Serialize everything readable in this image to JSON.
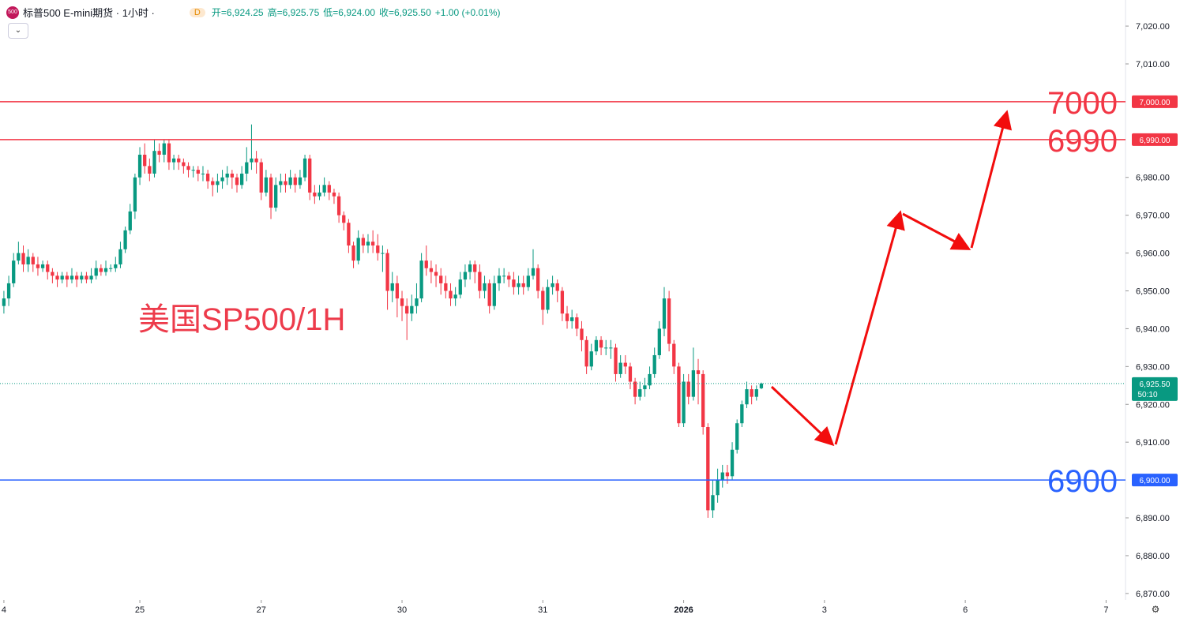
{
  "header": {
    "icon": "500",
    "symbol": "标普500 E-mini期货 · 1小时 ·",
    "badge": "D",
    "fields": [
      "开=6,924.25",
      "高=6,925.75",
      "低=6,924.00",
      "收=6,925.50",
      "+1.00 (+0.01%)"
    ]
  },
  "chart_data": {
    "type": "candlestick",
    "annotation": "美国SP500/1H",
    "up_color": "#089981",
    "down_color": "#f23645",
    "xlim": [
      -0.8,
      231
    ],
    "ylim": [
      6868.3,
      7026.9
    ],
    "xticks": [
      {
        "value": 0,
        "label": "4"
      },
      {
        "value": 28,
        "label": "25"
      },
      {
        "value": 53,
        "label": "27"
      },
      {
        "value": 82,
        "label": "30"
      },
      {
        "value": 111,
        "label": "31"
      },
      {
        "value": 140,
        "label": "2026"
      },
      {
        "value": 169,
        "label": "3"
      },
      {
        "value": 198,
        "label": "6"
      },
      {
        "value": 227,
        "label": "7"
      }
    ],
    "yticks": [
      {
        "value": 7020,
        "label": "7,020.00"
      },
      {
        "value": 7010,
        "label": "7,010.00"
      },
      {
        "value": 6980,
        "label": "6,980.00"
      },
      {
        "value": 6970,
        "label": "6,970.00"
      },
      {
        "value": 6960,
        "label": "6,960.00"
      },
      {
        "value": 6950,
        "label": "6,950.00"
      },
      {
        "value": 6940,
        "label": "6,940.00"
      },
      {
        "value": 6930,
        "label": "6,930.00"
      },
      {
        "value": 6920,
        "label": "6,920.00"
      },
      {
        "value": 6910,
        "label": "6,910.00"
      },
      {
        "value": 6890,
        "label": "6,890.00"
      },
      {
        "value": 6880,
        "label": "6,880.00"
      },
      {
        "value": 6870,
        "label": "6,870.00"
      }
    ],
    "levels": [
      {
        "value": 7000,
        "axis_label": "7,000.00",
        "color": "#f23645"
      },
      {
        "value": 6990,
        "axis_label": "6,990.00",
        "color": "#f23645"
      },
      {
        "value": 6900,
        "axis_label": "6,900.00",
        "color": "#2962ff"
      }
    ],
    "last": {
      "value": 6925.5,
      "label": "6,925.50",
      "countdown": "50:10"
    },
    "x": [
      0,
      1,
      2,
      3,
      4,
      5,
      6,
      7,
      8,
      9,
      10,
      11,
      12,
      13,
      14,
      15,
      16,
      17,
      18,
      19,
      20,
      21,
      22,
      23,
      24,
      25,
      26,
      27,
      28,
      29,
      30,
      31,
      32,
      33,
      34,
      35,
      36,
      37,
      38,
      39,
      40,
      41,
      42,
      43,
      44,
      45,
      46,
      47,
      48,
      49,
      50,
      51,
      52,
      53,
      54,
      55,
      56,
      57,
      58,
      59,
      60,
      61,
      62,
      63,
      64,
      65,
      66,
      67,
      68,
      69,
      70,
      71,
      72,
      73,
      74,
      75,
      76,
      77,
      78,
      79,
      80,
      81,
      82,
      83,
      84,
      85,
      86,
      87,
      88,
      89,
      90,
      91,
      92,
      93,
      94,
      95,
      96,
      97,
      98,
      99,
      100,
      101,
      102,
      103,
      104,
      105,
      106,
      107,
      108,
      109,
      110,
      111,
      112,
      113,
      114,
      115,
      116,
      117,
      118,
      119,
      120,
      121,
      122,
      123,
      124,
      125,
      126,
      127,
      128,
      129,
      130,
      131,
      132,
      133,
      134,
      135,
      136,
      137,
      138,
      139,
      140,
      141,
      142,
      143,
      144,
      145,
      146,
      147,
      148,
      149,
      150,
      151,
      152,
      153,
      154,
      155,
      156
    ],
    "open": [
      6946,
      6948,
      6952,
      6958,
      6960,
      6957,
      6959,
      6957,
      6956,
      6957,
      6955,
      6954,
      6953,
      6954,
      6953,
      6954,
      6953,
      6954,
      6953,
      6954,
      6956,
      6955,
      6956,
      6956,
      6957,
      6961,
      6966,
      6971,
      6980,
      6986,
      6983,
      6981,
      6987,
      6986,
      6989,
      6984,
      6985,
      6984,
      6983,
      6982,
      6982,
      6981,
      6981,
      6979,
      6978,
      6979,
      6980,
      6981,
      6980,
      6978,
      6981,
      6984,
      6985,
      6984,
      6976,
      6980,
      6972,
      6978,
      6979,
      6978,
      6980,
      6978,
      6980,
      6985,
      6976,
      6975,
      6976,
      6978,
      6976,
      6975,
      6970,
      6968,
      6962,
      6958,
      6964,
      6962,
      6963,
      6962,
      6960,
      6960,
      6950,
      6952,
      6948,
      6946,
      6944,
      6946,
      6948,
      6958,
      6956,
      6955,
      6954,
      6952,
      6950,
      6948,
      6949,
      6953,
      6955,
      6957,
      6955,
      6950,
      6952,
      6946,
      6952,
      6954,
      6954,
      6953,
      6951,
      6952,
      6951,
      6954,
      6956,
      6950,
      6945,
      6951,
      6952,
      6950,
      6944,
      6942,
      6943,
      6940,
      6937,
      6930,
      6934,
      6937,
      6935,
      6935,
      6935,
      6928,
      6931,
      6930,
      6926,
      6922,
      6924,
      6925,
      6928,
      6933,
      6940,
      6948,
      6936,
      6930,
      6915,
      6926,
      6922,
      6929,
      6928,
      6914,
      6892,
      6896,
      6900,
      6902,
      6901,
      6908,
      6915,
      6920,
      6924,
      6922,
      6924.25
    ],
    "high": [
      6950,
      6954,
      6960,
      6963,
      6962,
      6961,
      6960,
      6959,
      6958,
      6958,
      6956,
      6955,
      6955,
      6955,
      6956,
      6955,
      6955,
      6955,
      6956,
      6958,
      6957,
      6958,
      6957,
      6959,
      6963,
      6967,
      6973,
      6981,
      6988,
      6989,
      6985,
      6990,
      6989,
      6990,
      6990,
      6986,
      6986,
      6985,
      6984,
      6983,
      6983,
      6983,
      6982,
      6980,
      6981,
      6982,
      6983,
      6982,
      6981,
      6983,
      6988,
      6994,
      6987,
      6985,
      6982,
      6981,
      6980,
      6981,
      6981,
      6982,
      6981,
      6982,
      6986,
      6986,
      6978,
      6978,
      6980,
      6979,
      6977,
      6976,
      6971,
      6969,
      6963,
      6966,
      6965,
      6965,
      6966,
      6965,
      6962,
      6961,
      6955,
      6954,
      6950,
      6948,
      6949,
      6952,
      6960,
      6962,
      6958,
      6957,
      6956,
      6954,
      6952,
      6951,
      6955,
      6957,
      6958,
      6958,
      6957,
      6954,
      6953,
      6954,
      6956,
      6956,
      6955,
      6955,
      6954,
      6954,
      6956,
      6961,
      6957,
      6951,
      6953,
      6954,
      6953,
      6951,
      6946,
      6945,
      6944,
      6942,
      6938,
      6936,
      6938,
      6938,
      6937,
      6937,
      6936,
      6933,
      6933,
      6931,
      6927,
      6926,
      6927,
      6930,
      6935,
      6942,
      6951,
      6950,
      6937,
      6931,
      6928,
      6928,
      6935,
      6932,
      6929,
      6915,
      6900,
      6903,
      6904,
      6904,
      6910,
      6916,
      6921,
      6926,
      6925,
      6925,
      6925.75
    ],
    "low": [
      6944,
      6946,
      6951,
      6957,
      6955,
      6955,
      6955,
      6954,
      6955,
      6953,
      6952,
      6951,
      6952,
      6951,
      6952,
      6951,
      6952,
      6952,
      6952,
      6953,
      6954,
      6954,
      6955,
      6955,
      6956,
      6960,
      6965,
      6969,
      6978,
      6981,
      6979,
      6980,
      6984,
      6984,
      6982,
      6982,
      6982,
      6981,
      6980,
      6980,
      6979,
      6979,
      6977,
      6975,
      6976,
      6977,
      6978,
      6977,
      6976,
      6977,
      6979,
      6982,
      6981,
      6974,
      6975,
      6969,
      6971,
      6976,
      6976,
      6977,
      6976,
      6977,
      6979,
      6974,
      6973,
      6974,
      6975,
      6974,
      6973,
      6968,
      6966,
      6960,
      6956,
      6957,
      6960,
      6960,
      6960,
      6958,
      6955,
      6945,
      6947,
      6943,
      6942,
      6937,
      6942,
      6944,
      6947,
      6954,
      6952,
      6951,
      6949,
      6948,
      6946,
      6946,
      6948,
      6951,
      6953,
      6952,
      6948,
      6948,
      6944,
      6945,
      6950,
      6952,
      6951,
      6949,
      6949,
      6949,
      6950,
      6953,
      6948,
      6941,
      6944,
      6949,
      6947,
      6942,
      6940,
      6940,
      6938,
      6934,
      6928,
      6929,
      6933,
      6933,
      6933,
      6932,
      6926,
      6927,
      6928,
      6924,
      6920,
      6921,
      6922,
      6924,
      6927,
      6932,
      6938,
      6934,
      6928,
      6914,
      6914,
      6920,
      6921,
      6920,
      6912,
      6890,
      6890,
      6894,
      6898,
      6899,
      6900,
      6907,
      6914,
      6919,
      6920,
      6921,
      6924
    ],
    "close": [
      6948,
      6952,
      6958,
      6960,
      6957,
      6959,
      6957,
      6956,
      6957,
      6955,
      6954,
      6953,
      6954,
      6953,
      6954,
      6953,
      6954,
      6953,
      6954,
      6956,
      6955,
      6956,
      6956,
      6957,
      6961,
      6966,
      6971,
      6980,
      6986,
      6983,
      6981,
      6987,
      6986,
      6989,
      6984,
      6985,
      6984,
      6983,
      6982,
      6982,
      6981,
      6981,
      6979,
      6978,
      6979,
      6980,
      6981,
      6980,
      6978,
      6981,
      6984,
      6985,
      6984,
      6976,
      6980,
      6972,
      6978,
      6979,
      6978,
      6980,
      6978,
      6980,
      6985,
      6976,
      6975,
      6976,
      6978,
      6976,
      6975,
      6970,
      6968,
      6962,
      6958,
      6964,
      6962,
      6963,
      6962,
      6960,
      6960,
      6950,
      6952,
      6948,
      6946,
      6944,
      6946,
      6948,
      6958,
      6956,
      6955,
      6954,
      6952,
      6950,
      6948,
      6949,
      6953,
      6955,
      6957,
      6955,
      6950,
      6952,
      6946,
      6952,
      6954,
      6954,
      6953,
      6951,
      6952,
      6951,
      6954,
      6956,
      6950,
      6945,
      6951,
      6952,
      6950,
      6944,
      6942,
      6943,
      6940,
      6937,
      6930,
      6934,
      6937,
      6935,
      6935,
      6935,
      6928,
      6931,
      6930,
      6926,
      6922,
      6924,
      6925,
      6928,
      6933,
      6940,
      6948,
      6936,
      6930,
      6915,
      6926,
      6922,
      6929,
      6928,
      6914,
      6892,
      6896,
      6900,
      6902,
      6901,
      6908,
      6915,
      6920,
      6924,
      6922,
      6924,
      6925.5
    ]
  }
}
